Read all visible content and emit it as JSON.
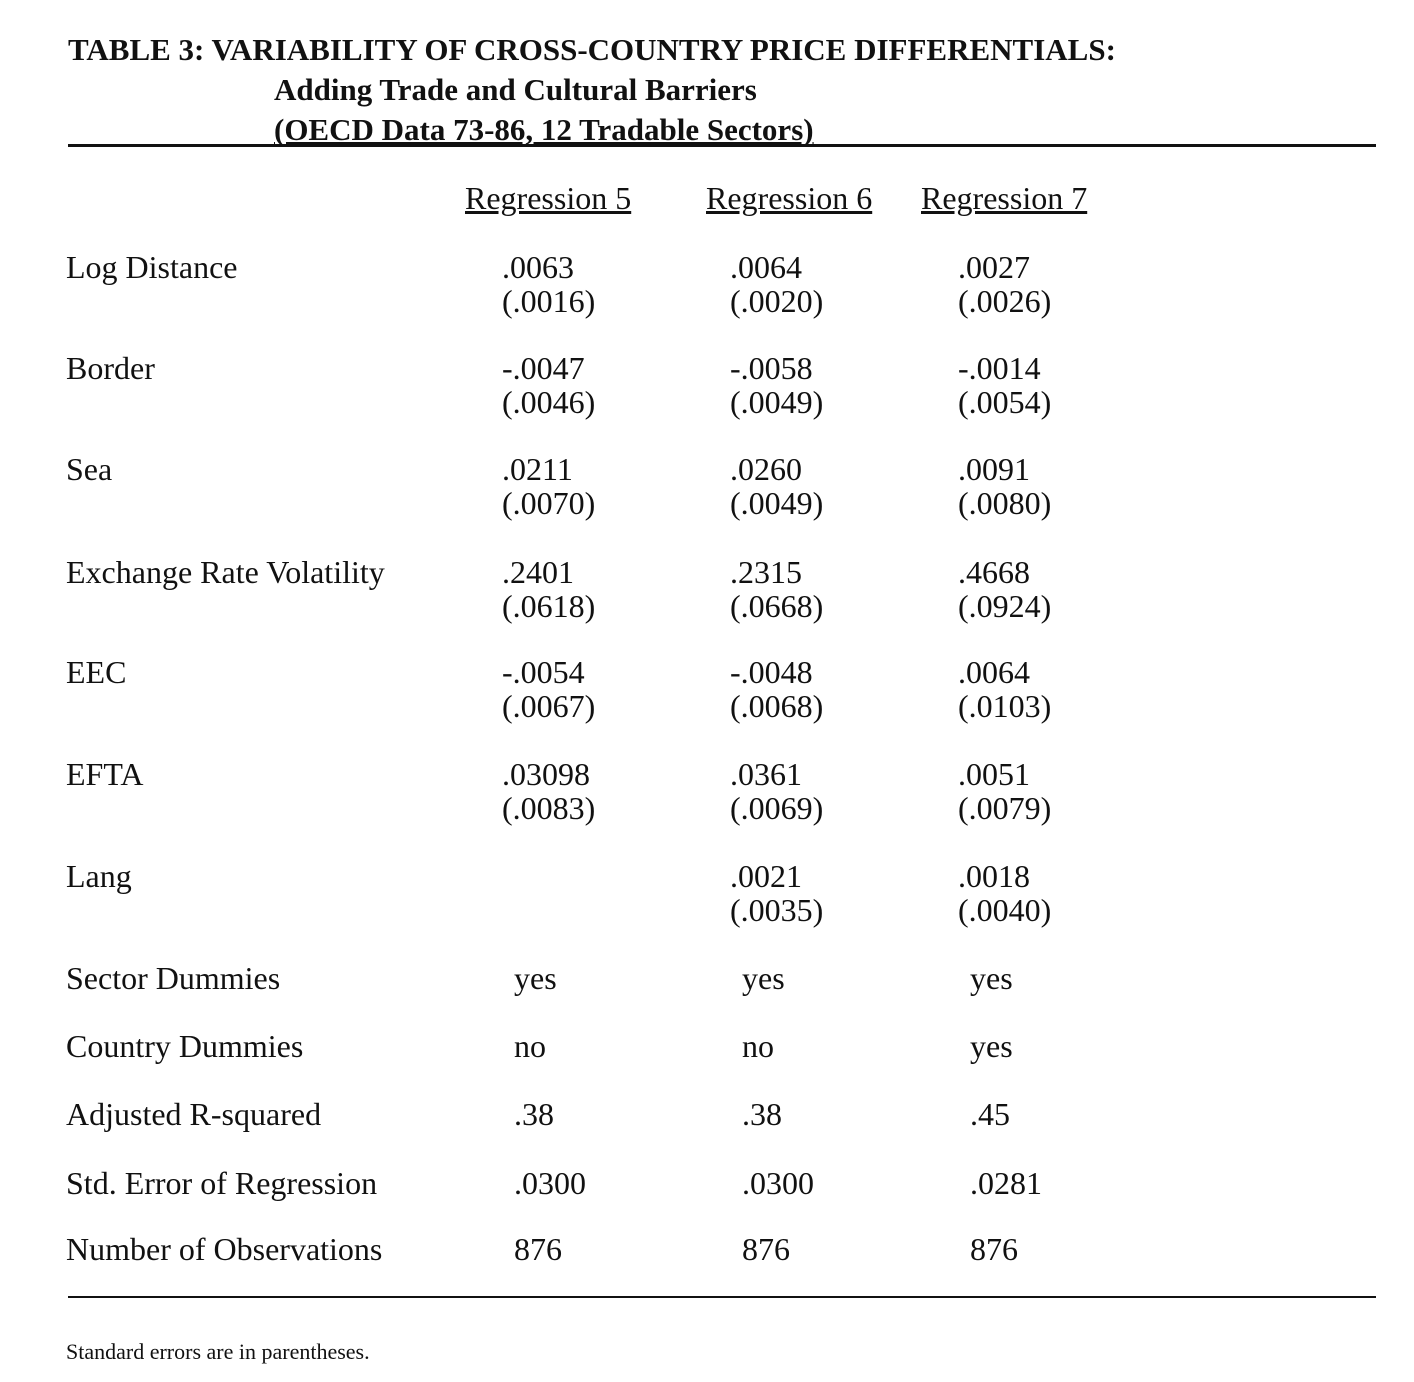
{
  "title": {
    "line1": "TABLE 3: VARIABILITY OF CROSS-COUNTRY PRICE DIFFERENTIALS:",
    "line2": "Adding Trade and Cultural Barriers",
    "line3": "(OECD Data 73-86, 12 Tradable Sectors)"
  },
  "columns": [
    "Regression 5",
    "Regression 6",
    "Regression 7"
  ],
  "rows": [
    {
      "label": "Log Distance",
      "values": [
        {
          "coef": ".0063",
          "se": "(.0016)"
        },
        {
          "coef": ".0064",
          "se": "(.0020)"
        },
        {
          "coef": ".0027",
          "se": "(.0026)"
        }
      ]
    },
    {
      "label": "Border",
      "values": [
        {
          "coef": "-.0047",
          "se": "(.0046)"
        },
        {
          "coef": "-.0058",
          "se": "(.0049)"
        },
        {
          "coef": "-.0014",
          "se": "(.0054)"
        }
      ]
    },
    {
      "label": "Sea",
      "values": [
        {
          "coef": ".0211",
          "se": "(.0070)"
        },
        {
          "coef": ".0260",
          "se": "(.0049)"
        },
        {
          "coef": ".0091",
          "se": "(.0080)"
        }
      ]
    },
    {
      "label": "Exchange Rate Volatility",
      "values": [
        {
          "coef": ".2401",
          "se": "(.0618)"
        },
        {
          "coef": ".2315",
          "se": "(.0668)"
        },
        {
          "coef": ".4668",
          "se": "(.0924)"
        }
      ]
    },
    {
      "label": "EEC",
      "values": [
        {
          "coef": "-.0054",
          "se": "(.0067)"
        },
        {
          "coef": "-.0048",
          "se": "(.0068)"
        },
        {
          "coef": ".0064",
          "se": "(.0103)"
        }
      ]
    },
    {
      "label": "EFTA",
      "values": [
        {
          "coef": ".03098",
          "se": "(.0083)"
        },
        {
          "coef": ".0361",
          "se": "(.0069)"
        },
        {
          "coef": ".0051",
          "se": "(.0079)"
        }
      ]
    },
    {
      "label": "Lang",
      "values": [
        {
          "coef": "",
          "se": ""
        },
        {
          "coef": ".0021",
          "se": "(.0035)"
        },
        {
          "coef": ".0018",
          "se": "(.0040)"
        }
      ]
    }
  ],
  "summary": [
    {
      "label": "Sector Dummies",
      "values": [
        "yes",
        "yes",
        "yes"
      ]
    },
    {
      "label": "Country Dummies",
      "values": [
        "no",
        "no",
        "yes"
      ]
    },
    {
      "label": "Adjusted R-squared",
      "values": [
        ".38",
        ".38",
        ".45"
      ]
    },
    {
      "label": "Std. Error of Regression",
      "values": [
        ".0300",
        ".0300",
        ".0281"
      ]
    },
    {
      "label": "Number of Observations",
      "values": [
        "876",
        "876",
        "876"
      ]
    }
  ],
  "note": "Standard errors are in parentheses."
}
